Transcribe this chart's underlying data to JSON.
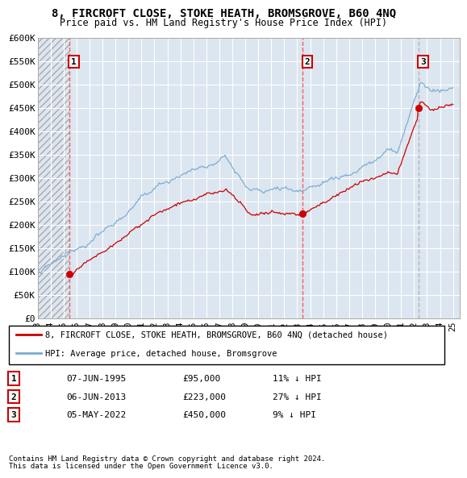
{
  "title": "8, FIRCROFT CLOSE, STOKE HEATH, BROMSGROVE, B60 4NQ",
  "subtitle": "Price paid vs. HM Land Registry's House Price Index (HPI)",
  "legend_property": "8, FIRCROFT CLOSE, STOKE HEATH, BROMSGROVE, B60 4NQ (detached house)",
  "legend_hpi": "HPI: Average price, detached house, Bromsgrove",
  "transactions": [
    {
      "label": "1",
      "date_str": "07-JUN-1995",
      "year": 1995.44,
      "price": 95000,
      "hpi_diff": "11% ↓ HPI",
      "vline_color": "#ff4444"
    },
    {
      "label": "2",
      "date_str": "06-JUN-2013",
      "year": 2013.43,
      "price": 223000,
      "hpi_diff": "27% ↓ HPI",
      "vline_color": "#ff4444"
    },
    {
      "label": "3",
      "date_str": "05-MAY-2022",
      "year": 2022.34,
      "price": 450000,
      "hpi_diff": "9% ↓ HPI",
      "vline_color": "#aaaaaa"
    }
  ],
  "property_color": "#cc0000",
  "hpi_color": "#7aaad0",
  "label_border_color": "#cc0000",
  "bg_color": "#dce6f0",
  "footer1": "Contains HM Land Registry data © Crown copyright and database right 2024.",
  "footer2": "This data is licensed under the Open Government Licence v3.0.",
  "ylim": [
    0,
    600000
  ],
  "xlim_start": 1993.0,
  "xlim_end": 2025.5,
  "yticks": [
    0,
    50000,
    100000,
    150000,
    200000,
    250000,
    300000,
    350000,
    400000,
    450000,
    500000,
    550000,
    600000
  ],
  "ytick_labels": [
    "£0",
    "£50K",
    "£100K",
    "£150K",
    "£200K",
    "£250K",
    "£300K",
    "£350K",
    "£400K",
    "£450K",
    "£500K",
    "£550K",
    "£600K"
  ],
  "xtick_years": [
    1993,
    1994,
    1995,
    1996,
    1997,
    1998,
    1999,
    2000,
    2001,
    2002,
    2003,
    2004,
    2005,
    2006,
    2007,
    2008,
    2009,
    2010,
    2011,
    2012,
    2013,
    2014,
    2015,
    2016,
    2017,
    2018,
    2019,
    2020,
    2021,
    2022,
    2023,
    2024,
    2025
  ]
}
